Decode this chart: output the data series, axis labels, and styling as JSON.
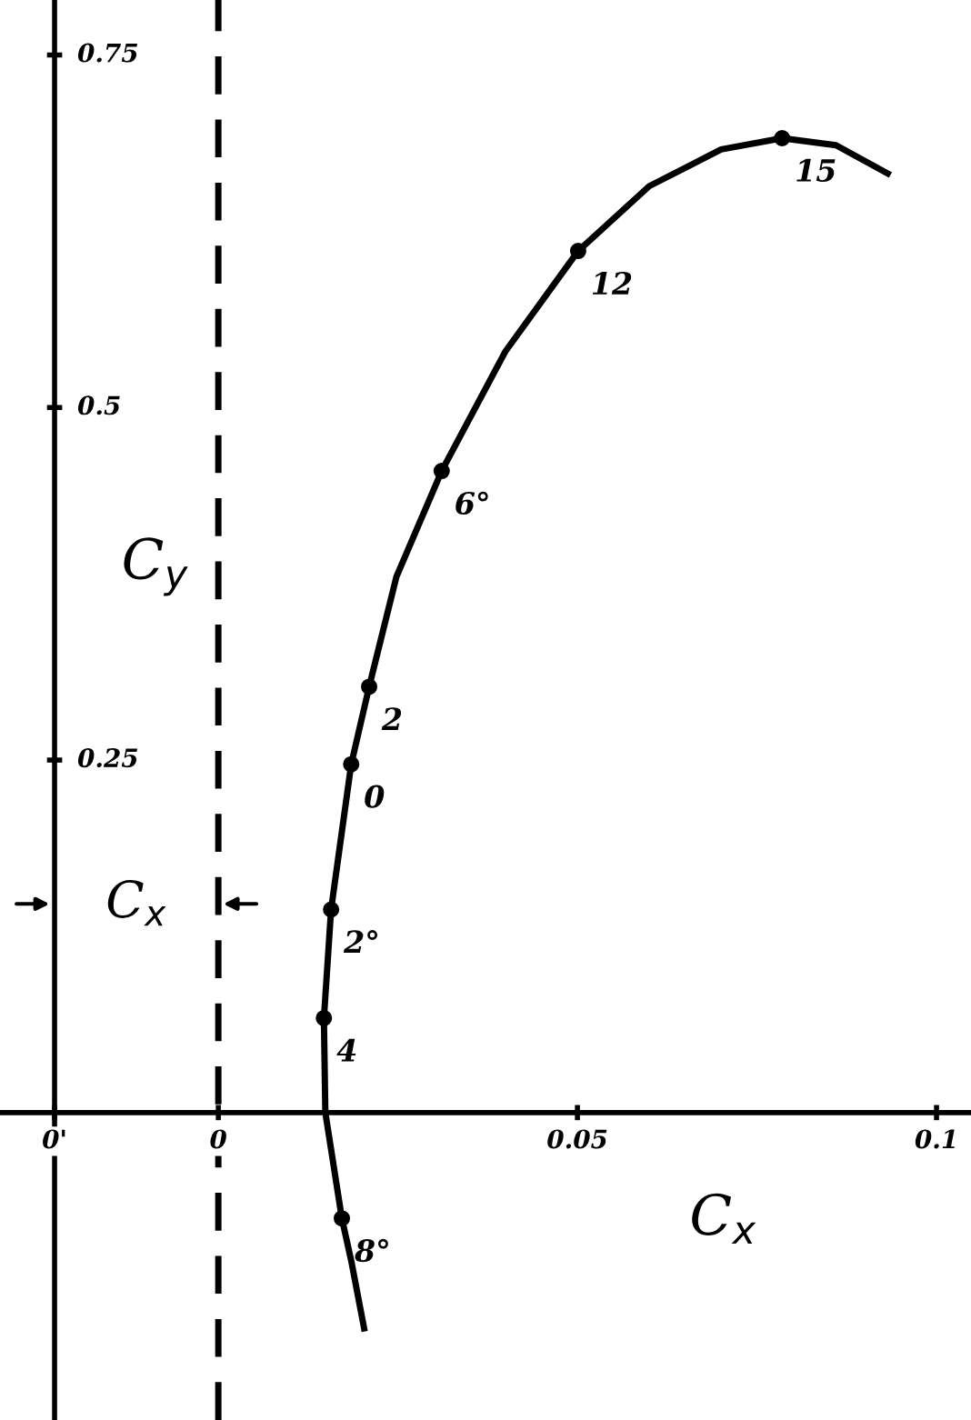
{
  "chart_data": {
    "type": "line",
    "xlabel": "C$_{x}$",
    "ylabel": "C$_{y}$",
    "x": [
      0.0203,
      0.0185,
      0.0172,
      0.0149,
      0.0147,
      0.0157,
      0.0185,
      0.021,
      0.0248,
      0.0311,
      0.04,
      0.0501,
      0.06,
      0.07,
      0.0785,
      0.086,
      0.0932
    ],
    "series": [
      {
        "color": "#000000",
        "marker": "none",
        "values": [
          -0.153,
          -0.105,
          -0.075,
          0,
          0.067,
          0.144,
          0.247,
          0.302,
          0.38,
          0.455,
          0.54,
          0.611,
          0.657,
          0.683,
          0.691,
          0.686,
          0.666
        ]
      },
      {
        "type": "scatter",
        "color": "#000000",
        "x": [
          0.0172,
          0.0147,
          0.0157,
          0.0185,
          0.021,
          0.0311,
          0.0501,
          0.0785
        ],
        "values": [
          -0.075,
          0.067,
          0.144,
          0.247,
          0.302,
          0.455,
          0.611,
          0.691
        ]
      }
    ],
    "xlim": [
      -0.0304,
      0.1048
    ],
    "ylim": [
      -0.218,
      0.789
    ],
    "xticks": [
      {
        "value": -0.0228,
        "label": "0'"
      },
      0,
      0.05,
      0.1
    ],
    "yticks": [
      0.25,
      0.5,
      0.75
    ],
    "ref_lines": [
      {
        "axis": "x",
        "value": 0,
        "line_style": "dashed",
        "color": "#000000"
      }
    ],
    "annotations": [
      {
        "text": "8°",
        "x": 0.0172,
        "y": -0.075
      },
      {
        "text": "4",
        "x": 0.0147,
        "y": 0.067
      },
      {
        "text": "2°",
        "x": 0.0157,
        "y": 0.144
      },
      {
        "text": "0",
        "x": 0.0185,
        "y": 0.247
      },
      {
        "text": "2",
        "x": 0.021,
        "y": 0.302
      },
      {
        "text": "6°",
        "x": 0.0311,
        "y": 0.455
      },
      {
        "text": "12",
        "x": 0.0501,
        "y": 0.611
      },
      {
        "text": "15",
        "x": 0.0785,
        "y": 0.691
      },
      "C$_{x}$"
    ],
    "grid": false,
    "line_style": "solid",
    "marker": "circle"
  }
}
